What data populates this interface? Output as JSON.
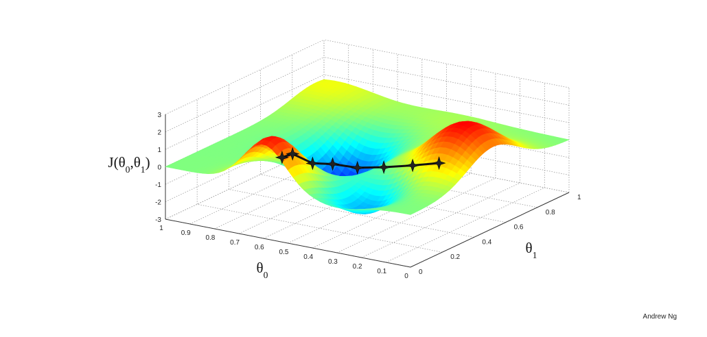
{
  "chart_data": {
    "type": "surface",
    "zlabel": "J(θ0,θ1)",
    "xlabel": "θ0",
    "ylabel": "θ1",
    "x_ticks": [
      "1",
      "0.9",
      "0.8",
      "0.7",
      "0.6",
      "0.5",
      "0.4",
      "0.3",
      "0.2",
      "0.1",
      "0"
    ],
    "y_ticks": [
      "0",
      "0.2",
      "0.4",
      "0.6",
      "0.8",
      "1"
    ],
    "z_ticks": [
      "3",
      "2",
      "1",
      "0",
      "-1",
      "-2",
      "-3"
    ],
    "xlim": [
      0,
      1
    ],
    "ylim": [
      0,
      1
    ],
    "zlim": [
      -3,
      3
    ],
    "colormap": "jet",
    "grid": true,
    "descent_path": [
      {
        "theta0": 0.55,
        "theta1": 0.04,
        "J": 1.6
      },
      {
        "theta0": 0.52,
        "theta1": 0.06,
        "J": 1.8
      },
      {
        "theta0": 0.49,
        "theta1": 0.14,
        "J": 1.0
      },
      {
        "theta0": 0.46,
        "theta1": 0.22,
        "J": 0.7
      },
      {
        "theta0": 0.43,
        "theta1": 0.33,
        "J": 0.1
      },
      {
        "theta0": 0.4,
        "theta1": 0.45,
        "J": -0.3
      },
      {
        "theta0": 0.36,
        "theta1": 0.57,
        "J": -0.6
      },
      {
        "theta0": 0.33,
        "theta1": 0.69,
        "J": -0.9
      }
    ]
  },
  "credit": "Andrew Ng"
}
